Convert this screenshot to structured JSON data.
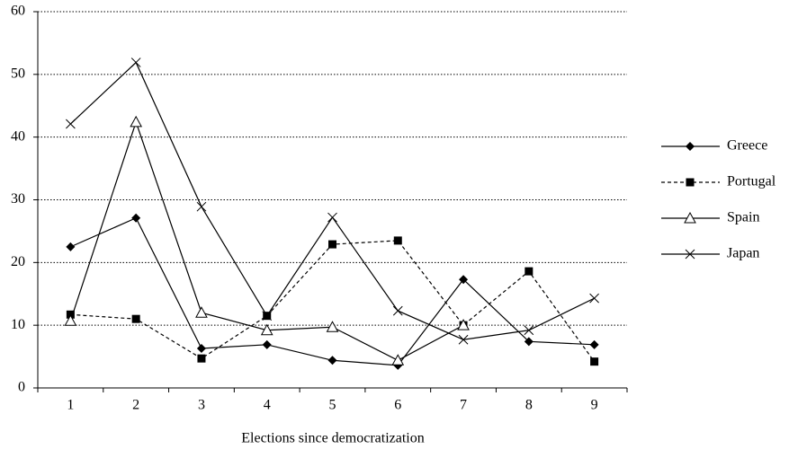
{
  "chart_data": {
    "type": "line",
    "x_label": "Elections since democratization",
    "categories": [
      "1",
      "2",
      "3",
      "4",
      "5",
      "6",
      "7",
      "8",
      "9"
    ],
    "series": [
      {
        "name": "Greece",
        "color": "#000000",
        "marker": "diamond",
        "dashed": false,
        "values": [
          22.5,
          27.1,
          6.3,
          6.9,
          4.4,
          3.6,
          17.3,
          7.4,
          6.9
        ]
      },
      {
        "name": "Portugal",
        "color": "#000000",
        "marker": "square",
        "dashed": true,
        "values": [
          11.7,
          11.0,
          4.7,
          11.5,
          22.9,
          23.5,
          10.0,
          18.6,
          4.2
        ]
      },
      {
        "name": "Spain",
        "color": "#000000",
        "marker": "triangle",
        "dashed": false,
        "values": [
          10.7,
          42.4,
          12.0,
          9.2,
          9.7,
          4.4,
          10.0,
          null,
          null
        ]
      },
      {
        "name": "Japan",
        "color": "#000000",
        "marker": "cross",
        "dashed": false,
        "values": [
          42.1,
          51.9,
          28.9,
          11.5,
          27.2,
          12.3,
          7.7,
          9.2,
          14.3
        ]
      }
    ],
    "ylim": [
      0,
      60
    ],
    "yticks": [
      0,
      10,
      20,
      30,
      40,
      50,
      60
    ],
    "grid": true,
    "legend": "right"
  }
}
